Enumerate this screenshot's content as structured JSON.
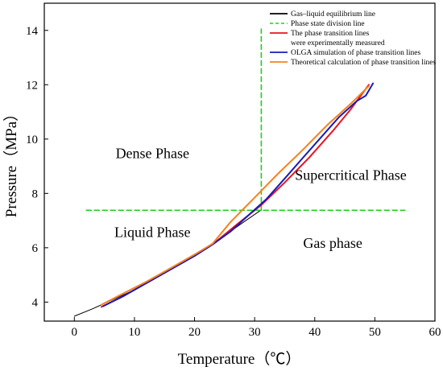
{
  "chart_data": {
    "type": "line",
    "xlabel": "Temperature（℃）",
    "ylabel": "Pressure（MPa）",
    "xlim": [
      -5,
      60
    ],
    "ylim": [
      3.3,
      15
    ],
    "x_ticks": [
      0,
      10,
      20,
      30,
      40,
      50,
      60
    ],
    "y_ticks": [
      4,
      6,
      8,
      10,
      12,
      14
    ],
    "legend_position": "top-right",
    "legend": [
      {
        "label": "Gas–liquid equilibrium line",
        "color": "#000000",
        "dash": false
      },
      {
        "label": "Phase state division line",
        "color": "#1ed01e",
        "dash": true
      },
      {
        "label": "The phase transition lines",
        "label2": "were experimentally measured",
        "color": "#e8141e",
        "dash": false
      },
      {
        "label": "OLGA simulation of phase transition lines",
        "color": "#1a1ab8",
        "dash": false
      },
      {
        "label": "Theoretical calculation of phase transition lines",
        "color": "#f5821e",
        "dash": false
      }
    ],
    "regions": [
      {
        "label": "Dense Phase",
        "x": 13,
        "y": 9.3
      },
      {
        "label": "Supercritical Phase",
        "x": 46,
        "y": 8.5
      },
      {
        "label": "Liquid Phase",
        "x": 13,
        "y": 6.4
      },
      {
        "label": "Gas phase",
        "x": 43,
        "y": 6.0
      }
    ],
    "series": [
      {
        "key": "equilibrium",
        "color": "#000000",
        "width": 1,
        "dash": false,
        "x": [
          0,
          3,
          6,
          10,
          14,
          18,
          22,
          25,
          28,
          31
        ],
        "y": [
          3.48,
          3.75,
          4.05,
          4.45,
          4.95,
          5.45,
          6.02,
          6.45,
          6.92,
          7.38
        ]
      },
      {
        "key": "division-vertical",
        "color": "#1ed01e",
        "width": 1.6,
        "dash": true,
        "x": [
          31.1,
          31.1
        ],
        "y": [
          7.38,
          14.05
        ]
      },
      {
        "key": "division-horizontal",
        "color": "#1ed01e",
        "width": 1.6,
        "dash": true,
        "x": [
          2,
          55
        ],
        "y": [
          7.38,
          7.38
        ]
      },
      {
        "key": "experimental",
        "color": "#e8141e",
        "width": 2,
        "dash": false,
        "x": [
          4.5,
          8,
          12,
          16,
          20,
          23,
          27,
          31,
          35,
          39,
          43,
          46,
          49
        ],
        "y": [
          3.82,
          4.2,
          4.7,
          5.2,
          5.7,
          6.12,
          6.85,
          7.55,
          8.4,
          9.3,
          10.3,
          11.1,
          12.0
        ]
      },
      {
        "key": "olga",
        "color": "#1a1ab8",
        "width": 2,
        "dash": false,
        "x": [
          4.8,
          8,
          12,
          16,
          20,
          23,
          26,
          29,
          32,
          35,
          38,
          41,
          44,
          47,
          48.5,
          49.7
        ],
        "y": [
          3.85,
          4.2,
          4.7,
          5.2,
          5.7,
          6.12,
          6.6,
          7.2,
          7.8,
          8.55,
          9.3,
          10.05,
          10.8,
          11.4,
          11.6,
          12.05
        ]
      },
      {
        "key": "theoretical",
        "color": "#f5821e",
        "width": 2,
        "dash": false,
        "x": [
          4.5,
          8,
          12,
          16,
          20,
          23,
          26,
          30,
          34,
          38,
          42,
          46,
          49
        ],
        "y": [
          3.9,
          4.3,
          4.75,
          5.25,
          5.75,
          6.15,
          6.95,
          7.85,
          8.75,
          9.6,
          10.5,
          11.3,
          11.95
        ]
      }
    ]
  }
}
